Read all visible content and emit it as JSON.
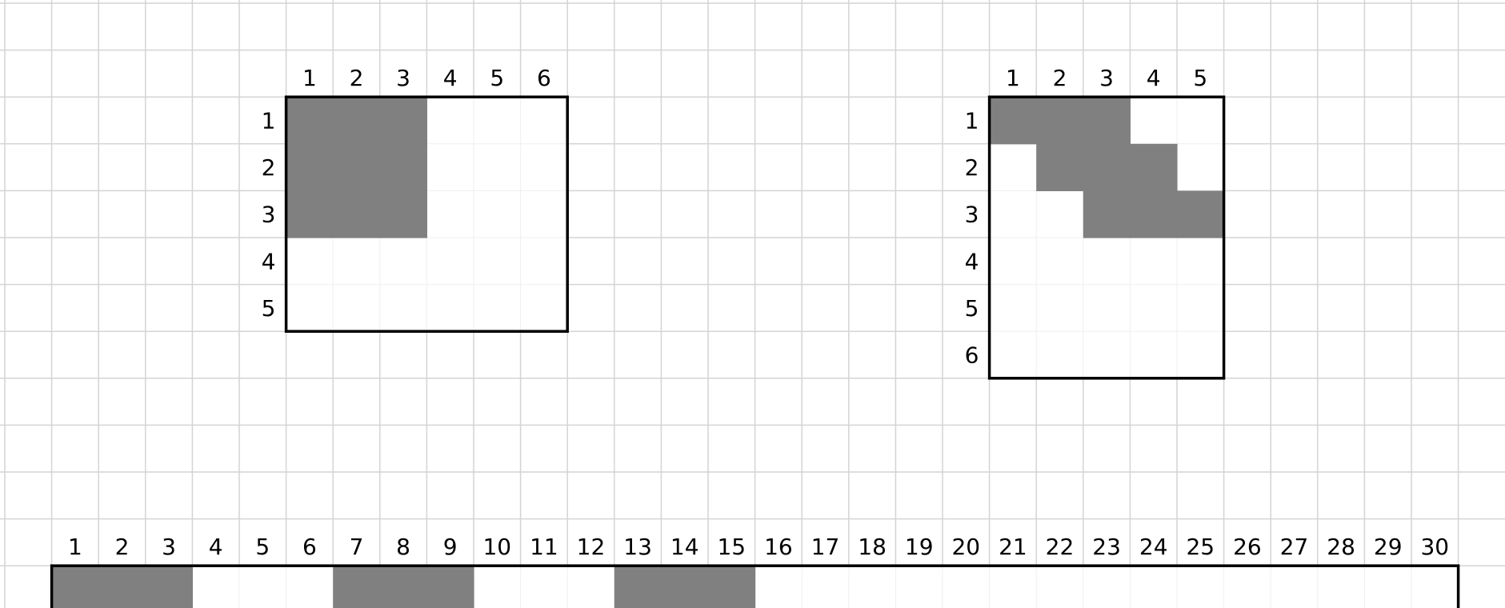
{
  "colors": {
    "background": "#ffffff",
    "grid_line": "#d4d4d4",
    "filled_cell": "#808080",
    "empty_cell": "#ffffff",
    "border": "#000000",
    "label_text": "#000000"
  },
  "grids": [
    {
      "id": "grid-a",
      "col_labels": [
        "1",
        "2",
        "3",
        "4",
        "5",
        "6"
      ],
      "row_labels": [
        "1",
        "2",
        "3",
        "4",
        "5"
      ],
      "filled_cells": [
        [
          1,
          1
        ],
        [
          1,
          2
        ],
        [
          1,
          3
        ],
        [
          2,
          1
        ],
        [
          2,
          2
        ],
        [
          2,
          3
        ],
        [
          3,
          1
        ],
        [
          3,
          2
        ],
        [
          3,
          3
        ]
      ]
    },
    {
      "id": "grid-b",
      "col_labels": [
        "1",
        "2",
        "3",
        "4",
        "5"
      ],
      "row_labels": [
        "1",
        "2",
        "3",
        "4",
        "5",
        "6"
      ],
      "filled_cells": [
        [
          1,
          1
        ],
        [
          1,
          2
        ],
        [
          1,
          3
        ],
        [
          2,
          2
        ],
        [
          2,
          3
        ],
        [
          2,
          4
        ],
        [
          3,
          3
        ],
        [
          3,
          4
        ],
        [
          3,
          5
        ]
      ]
    },
    {
      "id": "strip",
      "col_labels": [
        "1",
        "2",
        "3",
        "4",
        "5",
        "6",
        "7",
        "8",
        "9",
        "10",
        "11",
        "12",
        "13",
        "14",
        "15",
        "16",
        "17",
        "18",
        "19",
        "20",
        "21",
        "22",
        "23",
        "24",
        "25",
        "26",
        "27",
        "28",
        "29",
        "30"
      ],
      "row_labels": [],
      "filled_cells": [
        [
          1,
          1
        ],
        [
          1,
          2
        ],
        [
          1,
          3
        ],
        [
          1,
          7
        ],
        [
          1,
          8
        ],
        [
          1,
          9
        ],
        [
          1,
          13
        ],
        [
          1,
          14
        ],
        [
          1,
          15
        ]
      ]
    }
  ]
}
